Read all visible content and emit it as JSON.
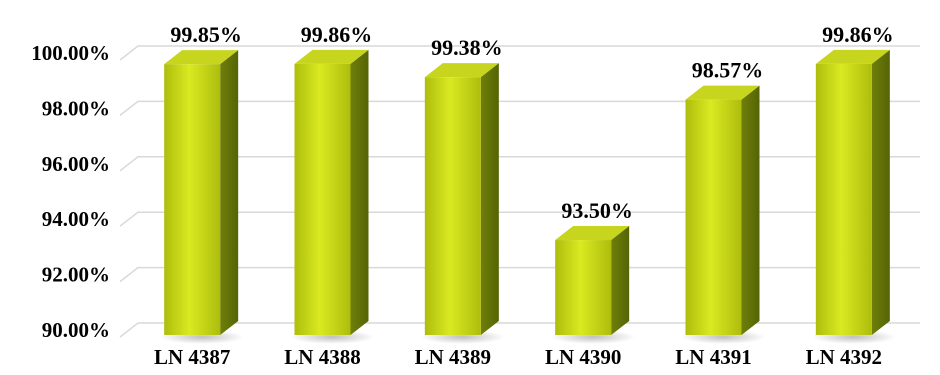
{
  "chart_data": {
    "type": "bar",
    "style": "3d-column",
    "categories": [
      "LN 4387",
      "LN 4388",
      "LN 4389",
      "LN 4390",
      "LN 4391",
      "LN 4392"
    ],
    "values": [
      99.85,
      99.86,
      99.38,
      93.5,
      98.57,
      99.86
    ],
    "data_labels": [
      "99.85%",
      "99.86%",
      "99.38%",
      "93.50%",
      "98.57%",
      "99.86%"
    ],
    "ylim": [
      90,
      100
    ],
    "yticks": [
      90,
      92,
      94,
      96,
      98,
      100
    ],
    "ytick_labels": [
      "90.00%",
      "92.00%",
      "94.00%",
      "96.00%",
      "98.00%",
      "100.00%"
    ],
    "grid": true,
    "legend": "none",
    "colors": {
      "bar_front_light": "#d9ea22",
      "bar_front_dark": "#aebd0c",
      "bar_side": "#6f7f0a",
      "bar_top": "#c7d51f",
      "gridline": "#d9d9d9",
      "text": "#000000"
    }
  }
}
